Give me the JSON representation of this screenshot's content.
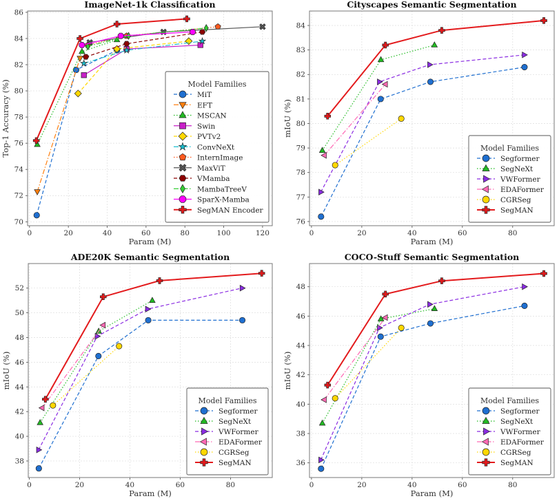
{
  "chart_data": [
    {
      "type": "line",
      "title": "ImageNet-1k Classification",
      "xlabel": "Param (M)",
      "ylabel": "Top-1 Accuracy (%)",
      "xlim": [
        -1,
        125
      ],
      "ylim": [
        69.7,
        86.1
      ],
      "xticks": [
        0,
        20,
        40,
        60,
        80,
        100,
        120
      ],
      "yticks": [
        70,
        72,
        74,
        76,
        78,
        80,
        82,
        84,
        86
      ],
      "grid": true,
      "legend": {
        "title": "Model Families",
        "placement": "center-right"
      },
      "series": [
        {
          "name": "MiT",
          "color": "#1f6fd0",
          "dash": "dashed",
          "marker": "circle",
          "x": [
            3.7,
            24,
            45
          ],
          "y": [
            70.5,
            81.6,
            83.1
          ]
        },
        {
          "name": "EFT",
          "color": "#ff7f0e",
          "dash": "dashdot",
          "marker": "triangle-down",
          "x": [
            4,
            26
          ],
          "y": [
            72.3,
            82.5
          ]
        },
        {
          "name": "MSCAN",
          "color": "#22bb22",
          "dash": "dotted",
          "marker": "triangle-up",
          "x": [
            4,
            27,
            45
          ],
          "y": [
            75.9,
            83.0,
            83.9
          ]
        },
        {
          "name": "Swin",
          "color": "#c71fc7",
          "dash": "solid",
          "marker": "square",
          "x": [
            28,
            50,
            88
          ],
          "y": [
            81.2,
            83.2,
            83.5
          ]
        },
        {
          "name": "PVTv2",
          "color": "#ffd700",
          "dash": "dashed",
          "marker": "diamond",
          "x": [
            25,
            45,
            82
          ],
          "y": [
            79.8,
            83.2,
            83.8
          ]
        },
        {
          "name": "ConvNeXt",
          "color": "#17becf",
          "dash": "dashdot",
          "marker": "star",
          "x": [
            28,
            50,
            89
          ],
          "y": [
            82.1,
            83.1,
            83.8
          ]
        },
        {
          "name": "InternImage",
          "color": "#ff5a1f",
          "dash": "dotted",
          "marker": "pentagon",
          "x": [
            30,
            50,
            97
          ],
          "y": [
            83.5,
            84.2,
            84.9
          ]
        },
        {
          "name": "MaxViT",
          "color": "#555555",
          "dash": "solid",
          "marker": "x",
          "x": [
            31,
            69,
            120
          ],
          "y": [
            83.7,
            84.5,
            84.9
          ]
        },
        {
          "name": "VMamba",
          "color": "#8b0000",
          "dash": "dashed",
          "marker": "hexagon",
          "x": [
            29,
            50,
            89
          ],
          "y": [
            82.6,
            83.6,
            84.5
          ]
        },
        {
          "name": "MambaTreeV",
          "color": "#33cc33",
          "dash": "dashdot",
          "marker": "thin-diamond",
          "x": [
            30,
            51,
            91
          ],
          "y": [
            83.4,
            84.2,
            84.8
          ]
        },
        {
          "name": "SparX-Mamba",
          "color": "#ff00ff",
          "dash": "solid",
          "marker": "octagon",
          "x": [
            27,
            47,
            84
          ],
          "y": [
            83.5,
            84.2,
            84.5
          ]
        },
        {
          "name": "SegMAN Encoder",
          "color": "#e31a1c",
          "dash": "solid-thick",
          "marker": "plus",
          "x": [
            3.5,
            26,
            45,
            81
          ],
          "y": [
            76.2,
            84.0,
            85.1,
            85.5
          ]
        }
      ]
    },
    {
      "type": "line",
      "title": "Cityscapes Semantic Segmentation",
      "xlabel": "Param (M)",
      "ylabel": "mIoU (%)",
      "xlim": [
        -0.8,
        96.5
      ],
      "ylim": [
        75.83,
        84.59
      ],
      "xticks": [
        0,
        20,
        40,
        60,
        80
      ],
      "yticks": [
        76,
        77,
        78,
        79,
        80,
        81,
        82,
        83,
        84
      ],
      "grid": true,
      "legend": {
        "title": "Model Families",
        "placement": "lower-right"
      },
      "series": [
        {
          "name": "Segformer",
          "color": "#1f6fd0",
          "dash": "dashed",
          "marker": "circle",
          "x": [
            3.8,
            27.5,
            47.3,
            84.7
          ],
          "y": [
            76.2,
            81.0,
            81.7,
            82.3
          ]
        },
        {
          "name": "SegNeXt",
          "color": "#22bb22",
          "dash": "dotted",
          "marker": "triangle-up",
          "x": [
            4.3,
            27.6,
            48.9
          ],
          "y": [
            78.9,
            82.6,
            83.2
          ]
        },
        {
          "name": "VWFormer",
          "color": "#8a2be2",
          "dash": "dashed",
          "marker": "triangle-right",
          "x": [
            3.7,
            27,
            47,
            84.6
          ],
          "y": [
            77.2,
            81.7,
            82.4,
            82.8
          ]
        },
        {
          "name": "EDAFormer",
          "color": "#ff69b4",
          "dash": "dashdot",
          "marker": "triangle-left",
          "x": [
            5.1,
            29.4
          ],
          "y": [
            78.7,
            81.6
          ]
        },
        {
          "name": "CGRSeg",
          "color": "#ffd700",
          "dash": "dotted",
          "marker": "circle",
          "x": [
            9.4,
            35.7
          ],
          "y": [
            78.3,
            80.2
          ]
        },
        {
          "name": "SegMAN",
          "color": "#e31a1c",
          "dash": "solid-thick",
          "marker": "plus",
          "x": [
            6.4,
            29.4,
            51.8,
            92.4
          ],
          "y": [
            80.3,
            83.2,
            83.8,
            84.2
          ]
        }
      ]
    },
    {
      "type": "line",
      "title": "ADE20K Semantic Segmentation",
      "xlabel": "Param (M)",
      "ylabel": "mIoU (%)",
      "xlim": [
        -0.4,
        96.6
      ],
      "ylim": [
        36.66,
        53.99
      ],
      "xticks": [
        0,
        20,
        40,
        60,
        80
      ],
      "yticks": [
        38,
        40,
        42,
        44,
        46,
        48,
        50,
        52
      ],
      "grid": true,
      "legend": {
        "title": "Model Families",
        "placement": "lower-right"
      },
      "series": [
        {
          "name": "Segformer",
          "color": "#1f6fd0",
          "dash": "dashed",
          "marker": "circle",
          "x": [
            3.8,
            27.5,
            47.3,
            84.7
          ],
          "y": [
            37.4,
            46.5,
            49.4,
            49.4
          ]
        },
        {
          "name": "SegNeXt",
          "color": "#22bb22",
          "dash": "dotted",
          "marker": "triangle-up",
          "x": [
            4.3,
            27.6,
            48.9
          ],
          "y": [
            41.1,
            48.5,
            51.0
          ]
        },
        {
          "name": "VWFormer",
          "color": "#8a2be2",
          "dash": "dashed",
          "marker": "triangle-right",
          "x": [
            3.7,
            27,
            47,
            84.6
          ],
          "y": [
            38.9,
            48.1,
            50.3,
            52.0
          ]
        },
        {
          "name": "EDAFormer",
          "color": "#ff69b4",
          "dash": "dashdot",
          "marker": "triangle-left",
          "x": [
            5.1,
            29.4
          ],
          "y": [
            42.3,
            49.0
          ]
        },
        {
          "name": "CGRSeg",
          "color": "#ffd700",
          "dash": "dotted",
          "marker": "circle",
          "x": [
            9.4,
            35.7
          ],
          "y": [
            42.5,
            47.3
          ]
        },
        {
          "name": "SegMAN",
          "color": "#e31a1c",
          "dash": "solid-thick",
          "marker": "plus",
          "x": [
            6.4,
            29.4,
            51.8,
            92.4
          ],
          "y": [
            43.0,
            51.3,
            52.6,
            53.2
          ]
        }
      ]
    },
    {
      "type": "line",
      "title": "COCO-Stuff Semantic Segmentation",
      "xlabel": "Param (M)",
      "ylabel": "mIoU (%)",
      "xlim": [
        -0.8,
        96.5
      ],
      "ylim": [
        35.0,
        49.58
      ],
      "xticks": [
        0,
        20,
        40,
        60,
        80
      ],
      "yticks": [
        36,
        38,
        40,
        42,
        44,
        46,
        48
      ],
      "grid": true,
      "legend": {
        "title": "Model Families",
        "placement": "lower-right"
      },
      "series": [
        {
          "name": "Segformer",
          "color": "#1f6fd0",
          "dash": "dashed",
          "marker": "circle",
          "x": [
            3.8,
            27.5,
            47.3,
            84.7
          ],
          "y": [
            35.6,
            44.6,
            45.5,
            46.7
          ]
        },
        {
          "name": "SegNeXt",
          "color": "#22bb22",
          "dash": "dotted",
          "marker": "triangle-up",
          "x": [
            4.3,
            27.6,
            48.9
          ],
          "y": [
            38.7,
            45.8,
            46.5
          ]
        },
        {
          "name": "VWFormer",
          "color": "#8a2be2",
          "dash": "dashed",
          "marker": "triangle-right",
          "x": [
            3.7,
            27,
            47,
            84.6
          ],
          "y": [
            36.2,
            45.2,
            46.8,
            48.0
          ]
        },
        {
          "name": "EDAFormer",
          "color": "#ff69b4",
          "dash": "dashdot",
          "marker": "triangle-left",
          "x": [
            5.1,
            29.4
          ],
          "y": [
            40.3,
            45.9
          ]
        },
        {
          "name": "CGRSeg",
          "color": "#ffd700",
          "dash": "dotted",
          "marker": "circle",
          "x": [
            9.4,
            35.7
          ],
          "y": [
            40.4,
            45.2
          ]
        },
        {
          "name": "SegMAN",
          "color": "#e31a1c",
          "dash": "solid-thick",
          "marker": "plus",
          "x": [
            6.4,
            29.4,
            51.8,
            92.4
          ],
          "y": [
            41.3,
            47.5,
            48.4,
            48.9
          ]
        }
      ]
    }
  ]
}
